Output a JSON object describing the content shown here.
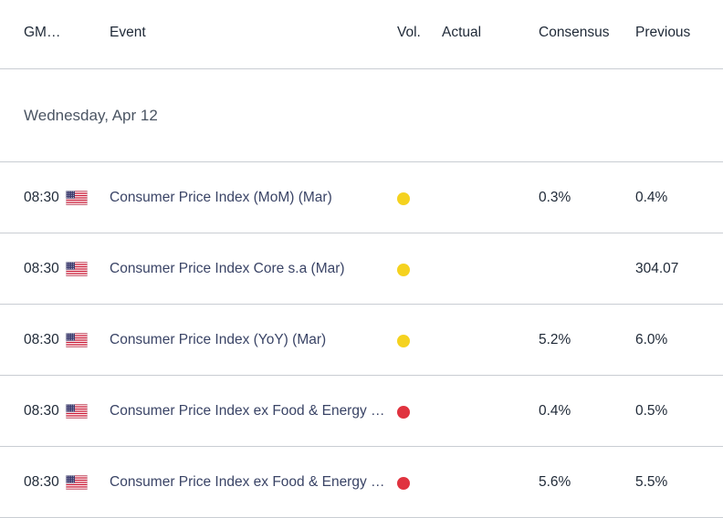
{
  "header": {
    "time_col": "GM…",
    "event_col": "Event",
    "vol_col": "Vol.",
    "actual_col": "Actual",
    "consensus_col": "Consensus",
    "previous_col": "Previous"
  },
  "date_group": {
    "label": "Wednesday, Apr 12"
  },
  "colors": {
    "vol_medium": "#f5d21f",
    "vol_high": "#e0333f",
    "divider": "#c9cdd3",
    "event_text": "#3a4466"
  },
  "rows": [
    {
      "time": "08:30",
      "flag": "us-flag-icon",
      "event": "Consumer Price Index (MoM) (Mar)",
      "volatility": "medium",
      "actual": "",
      "consensus": "0.3%",
      "previous": "0.4%"
    },
    {
      "time": "08:30",
      "flag": "us-flag-icon",
      "event": "Consumer Price Index Core s.a (Mar)",
      "volatility": "medium",
      "actual": "",
      "consensus": "",
      "previous": "304.07"
    },
    {
      "time": "08:30",
      "flag": "us-flag-icon",
      "event": "Consumer Price Index (YoY) (Mar)",
      "volatility": "medium",
      "actual": "",
      "consensus": "5.2%",
      "previous": "6.0%"
    },
    {
      "time": "08:30",
      "flag": "us-flag-icon",
      "event": "Consumer Price Index ex Food & Energy …",
      "volatility": "high",
      "actual": "",
      "consensus": "0.4%",
      "previous": "0.5%"
    },
    {
      "time": "08:30",
      "flag": "us-flag-icon",
      "event": "Consumer Price Index ex Food & Energy …",
      "volatility": "high",
      "actual": "",
      "consensus": "5.6%",
      "previous": "5.5%"
    }
  ]
}
